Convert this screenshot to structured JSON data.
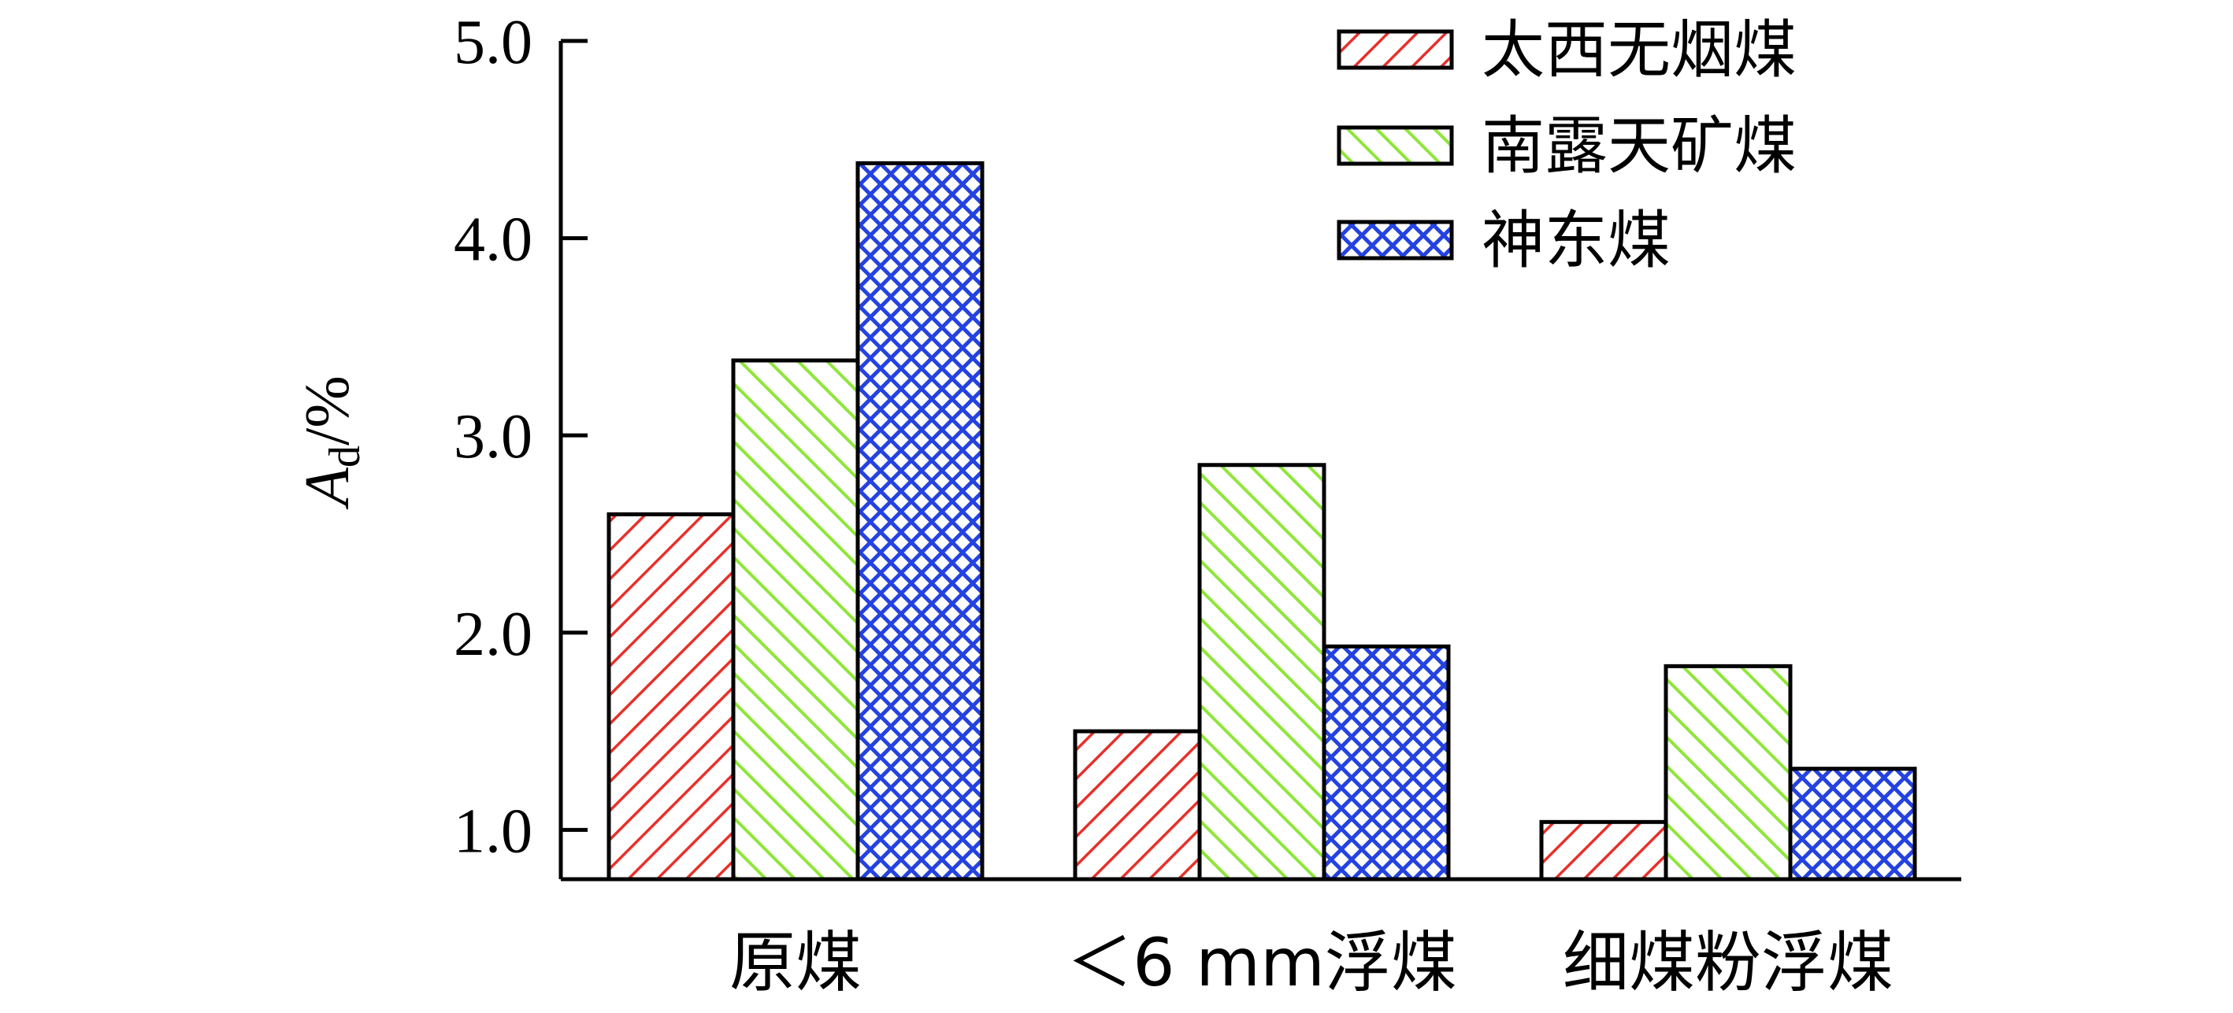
{
  "chart_data": {
    "type": "bar",
    "categories": [
      "原煤",
      "＜6 mm浮煤",
      "细煤粉浮煤"
    ],
    "series": [
      {
        "name": "太西无烟煤",
        "values": [
          2.6,
          1.5,
          1.04
        ],
        "color": "#e8302a",
        "pattern": "diagonal-hatch"
      },
      {
        "name": "南露天矿煤",
        "values": [
          3.38,
          2.85,
          1.83
        ],
        "color": "#8fe63a",
        "pattern": "diagonal-hatch-reverse"
      },
      {
        "name": "神东煤",
        "values": [
          4.38,
          1.93,
          1.31
        ],
        "color": "#2442e0",
        "pattern": "crosshatch"
      }
    ],
    "ylabel_main": "A",
    "ylabel_sub": "d",
    "ylabel_unit": "/%",
    "yticks": [
      "1.0",
      "2.0",
      "3.0",
      "4.0",
      "5.0"
    ],
    "ylim": [
      0.75,
      5.0
    ],
    "grid": false,
    "legend_position": "top-right"
  }
}
